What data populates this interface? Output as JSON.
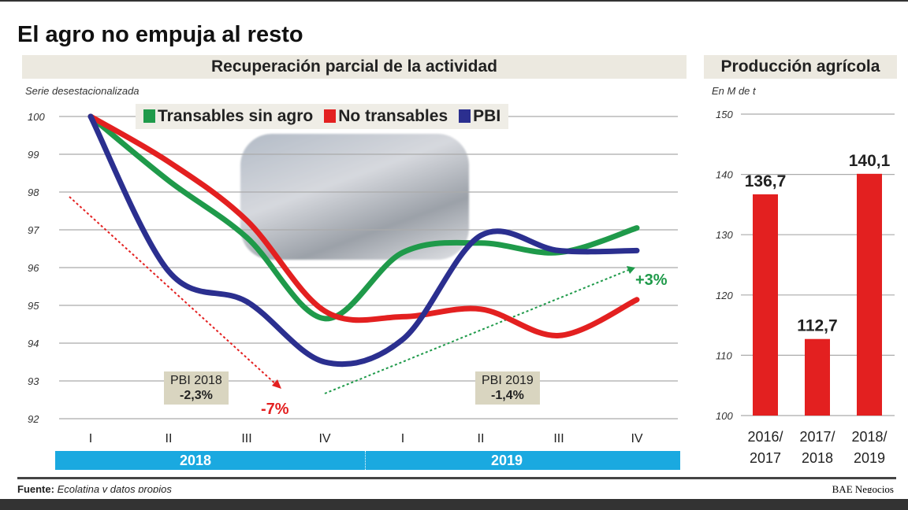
{
  "title": "El agro no empuja al resto",
  "left_header": "Recuperación parcial de la actividad",
  "right_header": "Producción agrícola",
  "footer": {
    "source_label": "Fuente:",
    "source_text": "Ecolatina y datos propios",
    "brand": "BAE Negocios"
  },
  "annotations": {
    "pbi2018_label": "PBI 2018",
    "pbi2018_value": "-2,3%",
    "pbi2019_label": "PBI 2019",
    "pbi2019_value": "-1,4%",
    "down": "-7%",
    "up": "+3%"
  },
  "chart_data": [
    {
      "type": "line",
      "title": "Recuperación parcial de la actividad",
      "ylabel": "Serie desestacionalizada",
      "ylim": [
        92,
        100
      ],
      "yticks": [
        100,
        99,
        98,
        97,
        96,
        95,
        94,
        93,
        92
      ],
      "categories": [
        "I",
        "II",
        "III",
        "IV",
        "I",
        "II",
        "III",
        "IV"
      ],
      "years": [
        "2018",
        "2019"
      ],
      "series": [
        {
          "name": "Transables sin agro",
          "color": "#1f9a4a",
          "values": [
            100,
            98.3,
            96.8,
            94.65,
            96.4,
            96.65,
            96.4,
            97.05
          ]
        },
        {
          "name": "No transables",
          "color": "#e32020",
          "values": [
            100,
            98.8,
            97.25,
            94.85,
            94.7,
            94.9,
            94.2,
            95.15
          ]
        },
        {
          "name": "PBI",
          "color": "#2b2f8f",
          "values": [
            100,
            95.9,
            95.1,
            93.5,
            94.1,
            96.85,
            96.45,
            96.45
          ]
        }
      ]
    },
    {
      "type": "bar",
      "title": "Producción agrícola",
      "ylabel": "En M de t",
      "ylim": [
        100,
        150
      ],
      "yticks": [
        150,
        140,
        130,
        120,
        110,
        100
      ],
      "categories": [
        "2016/ 2017",
        "2017/ 2018",
        "2018/ 2019"
      ],
      "values": [
        136.7,
        112.7,
        140.1
      ],
      "labels": [
        "136,7",
        "112,7",
        "140,1"
      ],
      "color": "#e32020"
    }
  ]
}
